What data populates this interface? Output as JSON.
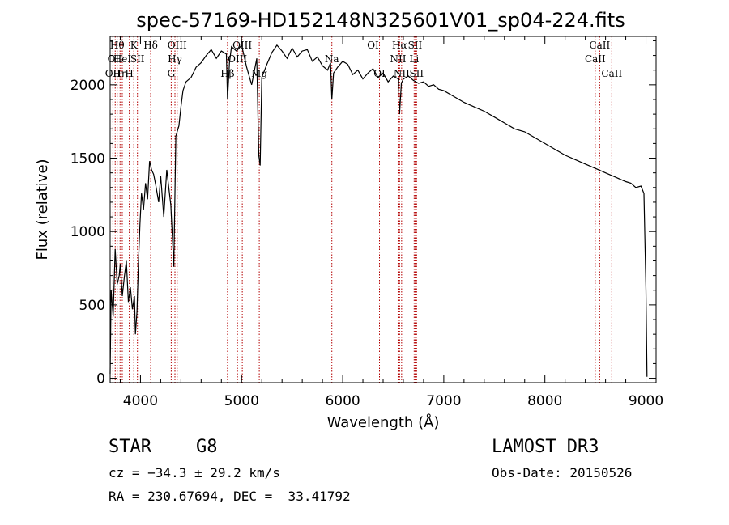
{
  "chart_data": {
    "type": "line",
    "title": "spec-57169-HD152148N325601V01_sp04-224.fits",
    "xlabel": "Wavelength (Å)",
    "ylabel": "Flux (relative)",
    "xlim": [
      3700,
      9100
    ],
    "ylim": [
      -30,
      2330
    ],
    "xticks": [
      4000,
      5000,
      6000,
      7000,
      8000,
      9000
    ],
    "yticks": [
      0,
      500,
      1000,
      1500,
      2000
    ],
    "line_color": "#000000",
    "marker_color": "#b30000",
    "grid": false,
    "series": [
      {
        "x": [
          3700,
          3710,
          3730,
          3750,
          3770,
          3790,
          3800,
          3820,
          3840,
          3860,
          3880,
          3900,
          3920,
          3940,
          3950,
          3965,
          3980,
          3995,
          4010,
          4030,
          4050,
          4070,
          4090,
          4110,
          4130,
          4150,
          4180,
          4200,
          4230,
          4260,
          4280,
          4300,
          4330,
          4350,
          4380,
          4400,
          4420,
          4450,
          4500,
          4550,
          4600,
          4650,
          4700,
          4750,
          4800,
          4850,
          4861,
          4880,
          4900,
          4950,
          5000,
          5050,
          5100,
          5150,
          5170,
          5184,
          5200,
          5250,
          5300,
          5350,
          5400,
          5450,
          5500,
          5550,
          5600,
          5650,
          5700,
          5750,
          5800,
          5850,
          5880,
          5893,
          5910,
          5950,
          6000,
          6050,
          6100,
          6150,
          6200,
          6250,
          6300,
          6350,
          6400,
          6450,
          6500,
          6550,
          6563,
          6580,
          6600,
          6650,
          6700,
          6750,
          6800,
          6850,
          6900,
          6950,
          7000,
          7100,
          7200,
          7300,
          7400,
          7500,
          7600,
          7700,
          7800,
          7900,
          8000,
          8100,
          8200,
          8300,
          8400,
          8500,
          8600,
          8700,
          8800,
          8850,
          8900,
          8950,
          8980,
          9000,
          9010
        ],
        "y": [
          30,
          600,
          420,
          880,
          640,
          700,
          780,
          560,
          690,
          800,
          520,
          620,
          470,
          560,
          300,
          450,
          780,
          1050,
          1260,
          1150,
          1330,
          1220,
          1480,
          1420,
          1390,
          1320,
          1200,
          1380,
          1100,
          1420,
          1300,
          1180,
          760,
          1650,
          1720,
          1850,
          1960,
          2020,
          2050,
          2120,
          2150,
          2200,
          2240,
          2180,
          2230,
          2210,
          1900,
          2150,
          2260,
          2230,
          2270,
          2120,
          2000,
          2180,
          1520,
          1450,
          2050,
          2140,
          2220,
          2270,
          2230,
          2180,
          2250,
          2190,
          2230,
          2240,
          2160,
          2190,
          2130,
          2100,
          2150,
          1900,
          2080,
          2120,
          2160,
          2140,
          2070,
          2100,
          2040,
          2080,
          2110,
          2050,
          2080,
          2020,
          2060,
          2040,
          1800,
          2010,
          2040,
          2060,
          2030,
          2010,
          2020,
          1990,
          2000,
          1970,
          1960,
          1920,
          1880,
          1850,
          1820,
          1780,
          1740,
          1700,
          1680,
          1640,
          1600,
          1560,
          1520,
          1490,
          1460,
          1430,
          1400,
          1370,
          1340,
          1330,
          1300,
          1310,
          1260,
          600,
          10
        ]
      }
    ],
    "line_markers": [
      {
        "x": 3727,
        "label": "OII",
        "row": 2
      },
      {
        "x": 3750,
        "label": "OII",
        "row": 1
      },
      {
        "x": 3770,
        "label": "Hθ",
        "row": 0
      },
      {
        "x": 3798,
        "label": "Hη",
        "row": 2
      },
      {
        "x": 3820,
        "label": "HeI",
        "row": 1
      },
      {
        "x": 3889,
        "label": "H",
        "row": 2
      },
      {
        "x": 3934,
        "label": "K",
        "row": 0
      },
      {
        "x": 3970,
        "label": "SII",
        "row": 1
      },
      {
        "x": 4101,
        "label": "Hδ",
        "row": 0
      },
      {
        "x": 4304,
        "label": "G",
        "row": 2
      },
      {
        "x": 4341,
        "label": "Hγ",
        "row": 1
      },
      {
        "x": 4363,
        "label": "OIII",
        "row": 0
      },
      {
        "x": 4861,
        "label": "Hβ",
        "row": 2
      },
      {
        "x": 4959,
        "label": "OIII",
        "row": 1
      },
      {
        "x": 5007,
        "label": "OIII",
        "row": 0
      },
      {
        "x": 5175,
        "label": "Mg",
        "row": 2
      },
      {
        "x": 5893,
        "label": "Na",
        "row": 1
      },
      {
        "x": 6300,
        "label": "OI",
        "row": 0
      },
      {
        "x": 6364,
        "label": "OI",
        "row": 2
      },
      {
        "x": 6548,
        "label": "NII",
        "row": 1
      },
      {
        "x": 6563,
        "label": "Hα",
        "row": 0
      },
      {
        "x": 6583,
        "label": "NII",
        "row": 2
      },
      {
        "x": 6707,
        "label": "Li",
        "row": 1
      },
      {
        "x": 6716,
        "label": "SII",
        "row": 0
      },
      {
        "x": 6731,
        "label": "SII",
        "row": 2
      },
      {
        "x": 8498,
        "label": "CaII",
        "row": 1
      },
      {
        "x": 8542,
        "label": "CaII",
        "row": 0
      },
      {
        "x": 8662,
        "label": "CaII",
        "row": 2
      }
    ]
  },
  "info": {
    "object_class": "STAR",
    "subclass": "G8",
    "survey": "LAMOST DR3",
    "redshift": "cz = −34.3 ± 29.2 km/s",
    "obs_date": "Obs-Date: 20150526",
    "coords": "RA = 230.67694, DEC =  33.41792"
  }
}
